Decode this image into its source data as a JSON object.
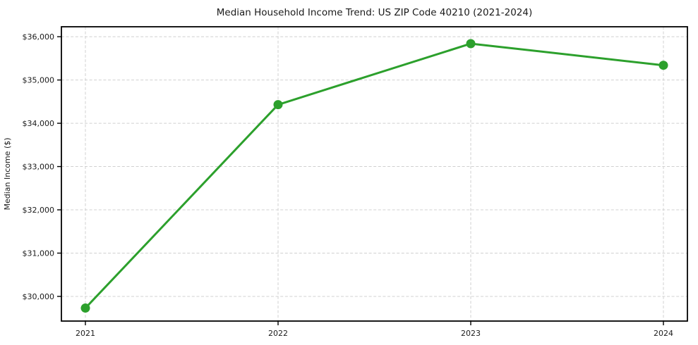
{
  "chart_data": {
    "type": "line",
    "title": "Median Household Income Trend: US ZIP Code 40210 (2021-2024)",
    "xlabel": "",
    "ylabel": "Median Income ($)",
    "categories": [
      "2021",
      "2022",
      "2023",
      "2024"
    ],
    "series": [
      {
        "values": [
          29730,
          34430,
          35840,
          35340
        ],
        "color": "#2ca02c",
        "marker": "circle"
      }
    ],
    "y_ticks": [
      30000,
      31000,
      32000,
      33000,
      34000,
      35000,
      36000
    ],
    "y_tick_labels": [
      "$30,000",
      "$31,000",
      "$32,000",
      "$33,000",
      "$34,000",
      "$35,000",
      "$36,000"
    ],
    "ylim": [
      29430,
      36230
    ],
    "grid": {
      "horizontal": true,
      "vertical": true,
      "style": "dashed"
    },
    "legend": "none"
  },
  "colors": {
    "line": "#2ca02c",
    "grid": "#d0d0d0",
    "axis": "#000000",
    "text": "#1a1a1a",
    "background": "#ffffff"
  }
}
